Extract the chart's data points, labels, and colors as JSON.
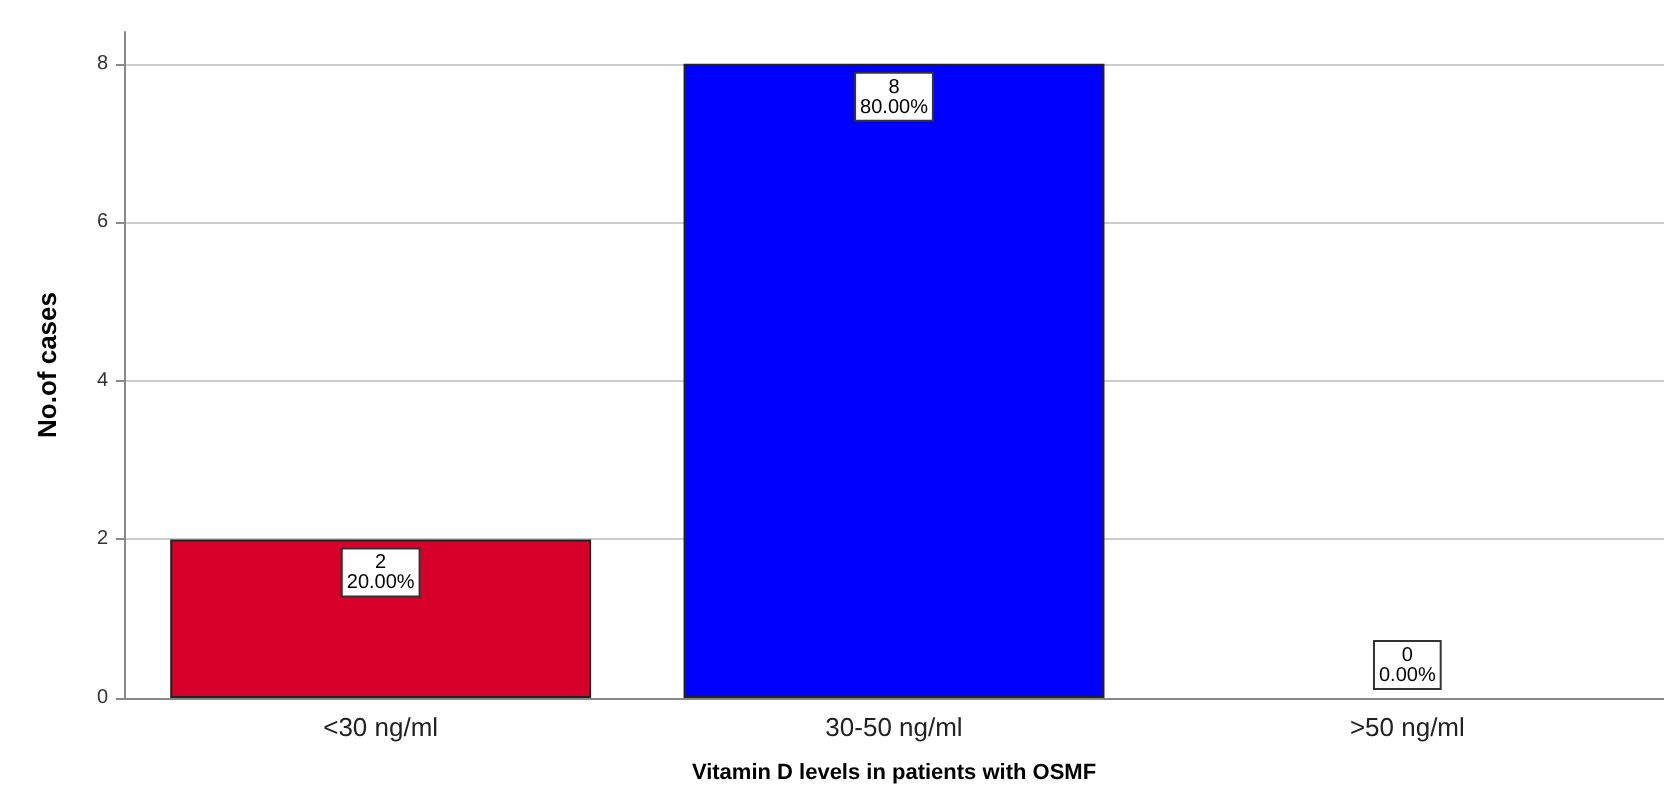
{
  "chart_data": {
    "type": "bar",
    "xlabel": "Vitamin D levels in patients with OSMF",
    "ylabel": "No.of cases",
    "categories": [
      "<30 ng/ml",
      "30-50 ng/ml",
      ">50 ng/ml"
    ],
    "values": [
      2,
      8,
      0
    ],
    "colors": [
      "#d6002a",
      "#0000ff",
      "#00a000"
    ],
    "value_labels": [
      "2\n20.00%",
      "8\n80.00%",
      "0\n0.00%"
    ],
    "ylim": [
      0,
      8.4
    ],
    "yticks": [
      0,
      2,
      4,
      6,
      8
    ],
    "grid": "y"
  }
}
